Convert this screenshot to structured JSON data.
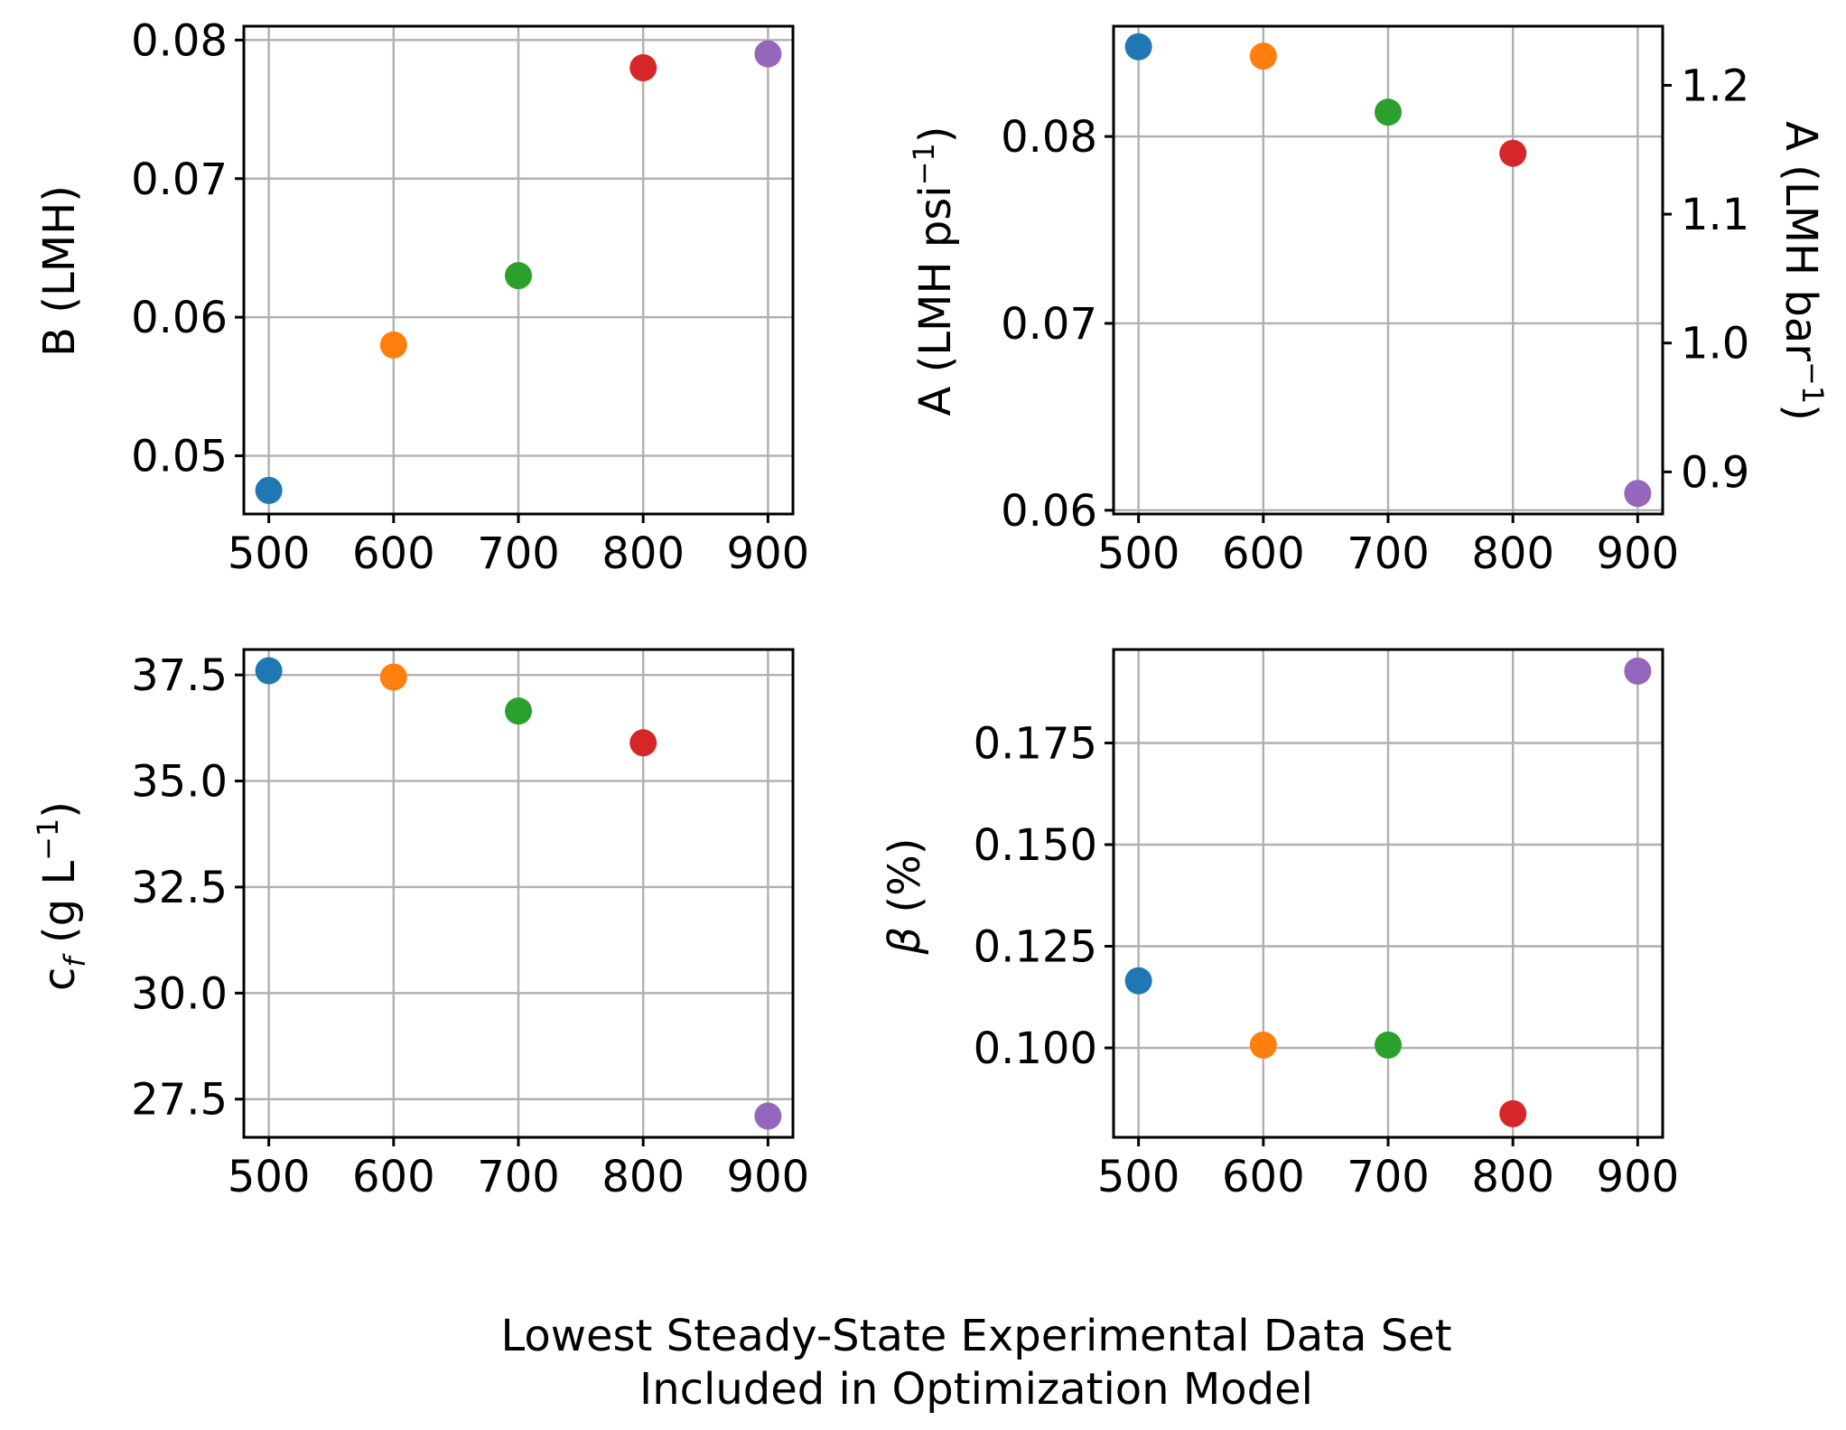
{
  "figure_xlabel": {
    "line1": "Lowest Steady-State Experimental Data Set",
    "line2": "Included in Optimization Model"
  },
  "colors": [
    "#1f77b4",
    "#ff7f0e",
    "#2ca02c",
    "#d62728",
    "#9467bd"
  ],
  "chart_data": [
    {
      "type": "scatter",
      "id": "B",
      "ylabel": "B (LMH)",
      "x": [
        500,
        600,
        700,
        800,
        900
      ],
      "y": [
        0.0475,
        0.058,
        0.063,
        0.078,
        0.079
      ],
      "xlim": [
        480,
        920
      ],
      "ylim": [
        0.0458,
        0.081
      ],
      "xticks": [
        500,
        600,
        700,
        800,
        900
      ],
      "yticks": [
        0.05,
        0.06,
        0.07,
        0.08
      ],
      "ytick_labels": [
        "0.05",
        "0.06",
        "0.07",
        "0.08"
      ],
      "grid": true
    },
    {
      "type": "scatter",
      "id": "A",
      "ylabel": {
        "text": "A (LMH psi",
        "sup": "−1",
        "close": ")"
      },
      "ylabel_right": {
        "text": "A (LMH bar",
        "sup": "−1",
        "close": ")"
      },
      "x": [
        500,
        600,
        700,
        800,
        900
      ],
      "y": [
        0.0848,
        0.0843,
        0.0813,
        0.0791,
        0.0609
      ],
      "xlim": [
        480,
        920
      ],
      "ylim": [
        0.0598,
        0.0859
      ],
      "xticks": [
        500,
        600,
        700,
        800,
        900
      ],
      "yticks": [
        0.06,
        0.07,
        0.08
      ],
      "ytick_labels": [
        "0.06",
        "0.07",
        "0.08"
      ],
      "y2_ticks": [
        0.9,
        1.0,
        1.1,
        1.2
      ],
      "y2_tick_labels": [
        "0.9",
        "1.0",
        "1.1",
        "1.2"
      ],
      "y2_per_y": 14.5038,
      "grid": true
    },
    {
      "type": "scatter",
      "id": "cf",
      "ylabel": {
        "text": "c",
        "sub": "f",
        "rest": " (g L",
        "sup": "−1",
        "close": ")"
      },
      "x": [
        500,
        600,
        700,
        800,
        900
      ],
      "y": [
        37.6,
        37.45,
        36.65,
        35.9,
        27.1
      ],
      "xlim": [
        480,
        920
      ],
      "ylim": [
        26.6,
        38.1
      ],
      "xticks": [
        500,
        600,
        700,
        800,
        900
      ],
      "yticks": [
        27.5,
        30.0,
        32.5,
        35.0,
        37.5
      ],
      "ytick_labels": [
        "27.5",
        "30.0",
        "32.5",
        "35.0",
        "37.5"
      ],
      "grid": true
    },
    {
      "type": "scatter",
      "id": "beta",
      "ylabel": {
        "greek": "β",
        "rest": " (%)"
      },
      "x": [
        500,
        600,
        700,
        800,
        900
      ],
      "y": [
        0.1165,
        0.1007,
        0.1007,
        0.0838,
        0.1927
      ],
      "xlim": [
        480,
        920
      ],
      "ylim": [
        0.078,
        0.198
      ],
      "xticks": [
        500,
        600,
        700,
        800,
        900
      ],
      "yticks": [
        0.1,
        0.125,
        0.15,
        0.175
      ],
      "ytick_labels": [
        "0.100",
        "0.125",
        "0.150",
        "0.175"
      ],
      "grid": true
    }
  ]
}
